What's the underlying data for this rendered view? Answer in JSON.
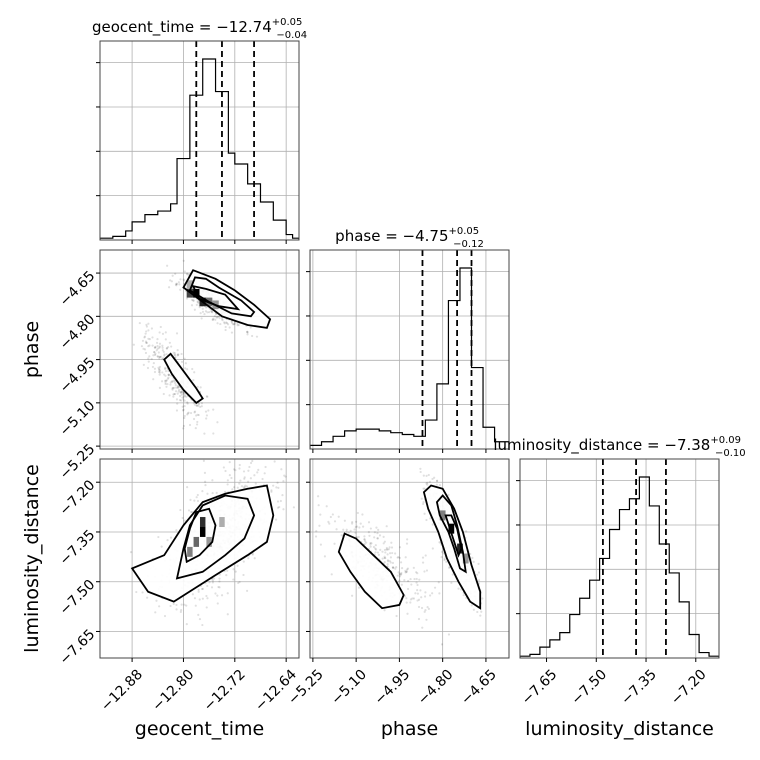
{
  "chart_data": {
    "type": "corner",
    "parameters": [
      "geocent_time",
      "phase",
      "luminosity_distance"
    ],
    "axis_labels": [
      "geocent_time",
      "phase",
      "luminosity_distance"
    ],
    "titles": [
      {
        "param": "geocent_time",
        "prefix": "geocent_time = ",
        "median": "−12.74",
        "plus": "+0.05",
        "minus": "−0.04"
      },
      {
        "param": "phase",
        "prefix": "phase = ",
        "median": "−4.75",
        "plus": "+0.05",
        "minus": "−0.12"
      },
      {
        "param": "luminosity_distance",
        "prefix": "luminosity_distance = ",
        "median": "−7.38",
        "plus": "+0.09",
        "minus": "−0.10"
      }
    ],
    "ranges": {
      "geocent_time": [
        -12.93,
        -12.62
      ],
      "phase": [
        -5.26,
        -4.57
      ],
      "luminosity_distance": [
        -7.73,
        -7.13
      ]
    },
    "ticks": {
      "geocent_time": {
        "values": [
          -12.88,
          -12.8,
          -12.72,
          -12.64
        ],
        "labels": [
          "−12.88",
          "−12.80",
          "−12.72",
          "−12.64"
        ]
      },
      "phase": {
        "values": [
          -5.25,
          -5.1,
          -4.95,
          -4.8,
          -4.65
        ],
        "labels": [
          "−5.25",
          "−5.10",
          "−4.95",
          "−4.80",
          "−4.65"
        ]
      },
      "luminosity_distance": {
        "values": [
          -7.65,
          -7.5,
          -7.35,
          -7.2
        ],
        "labels": [
          "−7.65",
          "−7.50",
          "−7.35",
          "−7.20"
        ]
      }
    },
    "histograms": {
      "geocent_time": {
        "bins": [
          -12.93,
          -12.91,
          -12.89,
          -12.88,
          -12.86,
          -12.84,
          -12.82,
          -12.81,
          -12.79,
          -12.77,
          -12.75,
          -12.73,
          -12.72,
          -12.7,
          -12.68,
          -12.66,
          -12.64,
          -12.63,
          -12.62
        ],
        "counts": [
          0.01,
          0.02,
          0.05,
          0.1,
          0.14,
          0.16,
          0.2,
          0.45,
          0.8,
          1.0,
          0.82,
          0.48,
          0.42,
          0.31,
          0.21,
          0.11,
          0.03,
          0.01
        ],
        "quantiles": [
          -12.78,
          -12.74,
          -12.69
        ]
      },
      "phase": {
        "bins": [
          -5.26,
          -5.22,
          -5.18,
          -5.14,
          -5.1,
          -5.06,
          -5.02,
          -4.98,
          -4.94,
          -4.9,
          -4.86,
          -4.82,
          -4.78,
          -4.74,
          -4.7,
          -4.66,
          -4.62,
          -4.57
        ],
        "counts": [
          0.02,
          0.04,
          0.07,
          0.1,
          0.11,
          0.11,
          0.1,
          0.09,
          0.08,
          0.07,
          0.16,
          0.36,
          0.82,
          1.0,
          0.45,
          0.12,
          0.04
        ],
        "quantiles": [
          -4.87,
          -4.75,
          -4.7
        ]
      },
      "luminosity_distance": {
        "bins": [
          -7.73,
          -7.7,
          -7.67,
          -7.64,
          -7.61,
          -7.58,
          -7.55,
          -7.52,
          -7.49,
          -7.46,
          -7.43,
          -7.4,
          -7.37,
          -7.34,
          -7.31,
          -7.28,
          -7.25,
          -7.22,
          -7.19,
          -7.16,
          -7.13
        ],
        "counts": [
          0.01,
          0.02,
          0.06,
          0.1,
          0.14,
          0.24,
          0.33,
          0.43,
          0.55,
          0.71,
          0.82,
          0.88,
          1.0,
          0.84,
          0.63,
          0.47,
          0.31,
          0.13,
          0.03,
          0.01
        ],
        "quantiles": [
          -7.48,
          -7.38,
          -7.29
        ]
      }
    },
    "samples": {
      "geocent_time_vs_phase": [
        {
          "mean": [
            -12.755,
            -4.75
          ],
          "std": [
            0.025,
            0.045
          ],
          "rho": -0.8,
          "n": 450
        },
        {
          "mean": [
            -12.815,
            -5.0
          ],
          "std": [
            0.022,
            0.075
          ],
          "rho": -0.75,
          "n": 320
        }
      ],
      "geocent_time_vs_luminosity_distance": [
        {
          "mean": [
            -12.75,
            -7.37
          ],
          "std": [
            0.042,
            0.095
          ],
          "rho": 0.55,
          "n": 850
        }
      ],
      "phase_vs_luminosity_distance": [
        {
          "mean": [
            -4.77,
            -7.37
          ],
          "std": [
            0.045,
            0.09
          ],
          "rho": -0.85,
          "n": 450
        },
        {
          "mean": [
            -5.02,
            -7.45
          ],
          "std": [
            0.085,
            0.07
          ],
          "rho": -0.7,
          "n": 380
        }
      ]
    },
    "density_peaks": {
      "geocent_time_vs_phase": [
        {
          "x": -12.78,
          "y": -4.72,
          "w": 0.01,
          "h": 0.03,
          "level": 1.0
        },
        {
          "x": -12.77,
          "y": -4.75,
          "w": 0.01,
          "h": 0.03,
          "level": 0.85
        },
        {
          "x": -12.79,
          "y": -4.72,
          "w": 0.01,
          "h": 0.03,
          "level": 0.7
        },
        {
          "x": -12.76,
          "y": -4.75,
          "w": 0.01,
          "h": 0.03,
          "level": 0.5
        },
        {
          "x": -12.75,
          "y": -4.76,
          "w": 0.01,
          "h": 0.03,
          "level": 0.35
        },
        {
          "x": -12.79,
          "y": -4.69,
          "w": 0.01,
          "h": 0.03,
          "level": 0.25
        }
      ],
      "geocent_time_vs_luminosity_distance": [
        {
          "x": -12.77,
          "y": -7.35,
          "w": 0.0085,
          "h": 0.03,
          "level": 1.0
        },
        {
          "x": -12.77,
          "y": -7.32,
          "w": 0.0085,
          "h": 0.03,
          "level": 0.8
        },
        {
          "x": -12.78,
          "y": -7.38,
          "w": 0.0085,
          "h": 0.03,
          "level": 0.55
        },
        {
          "x": -12.79,
          "y": -7.41,
          "w": 0.0085,
          "h": 0.03,
          "level": 0.45
        },
        {
          "x": -12.76,
          "y": -7.38,
          "w": 0.0085,
          "h": 0.03,
          "level": 0.35
        },
        {
          "x": -12.74,
          "y": -7.32,
          "w": 0.0085,
          "h": 0.03,
          "level": 0.25
        }
      ],
      "phase_vs_luminosity_distance": [
        {
          "x": -4.77,
          "y": -7.34,
          "w": 0.02,
          "h": 0.03,
          "level": 1.0
        },
        {
          "x": -4.74,
          "y": -7.4,
          "w": 0.02,
          "h": 0.03,
          "level": 0.85
        },
        {
          "x": -4.8,
          "y": -7.3,
          "w": 0.02,
          "h": 0.03,
          "level": 0.45
        },
        {
          "x": -4.72,
          "y": -7.43,
          "w": 0.02,
          "h": 0.03,
          "level": 0.35
        }
      ]
    },
    "contours": {
      "geocent_time_vs_phase": [
        [
          [
            -12.785,
            -4.64
          ],
          [
            -12.8,
            -4.7
          ],
          [
            -12.77,
            -4.75
          ],
          [
            -12.74,
            -4.8
          ],
          [
            -12.7,
            -4.83
          ],
          [
            -12.67,
            -4.84
          ],
          [
            -12.665,
            -4.81
          ],
          [
            -12.69,
            -4.76
          ],
          [
            -12.72,
            -4.71
          ],
          [
            -12.75,
            -4.67
          ]
        ],
        [
          [
            -12.782,
            -4.665
          ],
          [
            -12.79,
            -4.71
          ],
          [
            -12.76,
            -4.75
          ],
          [
            -12.725,
            -4.79
          ],
          [
            -12.695,
            -4.8
          ],
          [
            -12.69,
            -4.785
          ],
          [
            -12.71,
            -4.745
          ],
          [
            -12.745,
            -4.7
          ],
          [
            -12.765,
            -4.67
          ]
        ],
        [
          [
            -12.785,
            -4.695
          ],
          [
            -12.775,
            -4.74
          ],
          [
            -12.745,
            -4.765
          ],
          [
            -12.715,
            -4.775
          ],
          [
            -12.735,
            -4.725
          ],
          [
            -12.765,
            -4.705
          ]
        ],
        [
          [
            -12.82,
            -4.93
          ],
          [
            -12.8,
            -4.99
          ],
          [
            -12.78,
            -5.05
          ],
          [
            -12.77,
            -5.085
          ],
          [
            -12.78,
            -5.1
          ],
          [
            -12.8,
            -5.055
          ],
          [
            -12.818,
            -5.0
          ],
          [
            -12.83,
            -4.95
          ]
        ]
      ],
      "geocent_time_vs_luminosity_distance": [
        [
          [
            -12.88,
            -7.46
          ],
          [
            -12.855,
            -7.53
          ],
          [
            -12.815,
            -7.56
          ],
          [
            -12.75,
            -7.48
          ],
          [
            -12.7,
            -7.42
          ],
          [
            -12.67,
            -7.38
          ],
          [
            -12.66,
            -7.3
          ],
          [
            -12.67,
            -7.21
          ],
          [
            -12.7,
            -7.22
          ],
          [
            -12.735,
            -7.235
          ],
          [
            -12.77,
            -7.26
          ],
          [
            -12.8,
            -7.33
          ],
          [
            -12.83,
            -7.42
          ]
        ],
        [
          [
            -12.81,
            -7.49
          ],
          [
            -12.77,
            -7.47
          ],
          [
            -12.735,
            -7.42
          ],
          [
            -12.705,
            -7.37
          ],
          [
            -12.69,
            -7.3
          ],
          [
            -12.7,
            -7.25
          ],
          [
            -12.735,
            -7.24
          ],
          [
            -12.77,
            -7.27
          ],
          [
            -12.79,
            -7.33
          ],
          [
            -12.8,
            -7.4
          ]
        ],
        [
          [
            -12.795,
            -7.44
          ],
          [
            -12.775,
            -7.42
          ],
          [
            -12.755,
            -7.38
          ],
          [
            -12.75,
            -7.33
          ],
          [
            -12.76,
            -7.28
          ],
          [
            -12.78,
            -7.29
          ],
          [
            -12.79,
            -7.34
          ],
          [
            -12.798,
            -7.4
          ]
        ]
      ],
      "phase_vs_luminosity_distance": [
        [
          [
            -4.865,
            -7.23
          ],
          [
            -4.85,
            -7.28
          ],
          [
            -4.815,
            -7.35
          ],
          [
            -4.785,
            -7.43
          ],
          [
            -4.745,
            -7.5
          ],
          [
            -4.705,
            -7.56
          ],
          [
            -4.67,
            -7.58
          ],
          [
            -4.67,
            -7.53
          ],
          [
            -4.7,
            -7.45
          ],
          [
            -4.73,
            -7.35
          ],
          [
            -4.76,
            -7.28
          ],
          [
            -4.8,
            -7.22
          ],
          [
            -4.84,
            -7.21
          ]
        ],
        [
          [
            -4.82,
            -7.26
          ],
          [
            -4.81,
            -7.3
          ],
          [
            -4.78,
            -7.35
          ],
          [
            -4.76,
            -7.4
          ],
          [
            -4.74,
            -7.46
          ],
          [
            -4.72,
            -7.47
          ],
          [
            -4.73,
            -7.41
          ],
          [
            -4.75,
            -7.33
          ],
          [
            -4.77,
            -7.27
          ],
          [
            -4.8,
            -7.24
          ]
        ],
        [
          [
            -4.79,
            -7.3
          ],
          [
            -4.775,
            -7.34
          ],
          [
            -4.76,
            -7.38
          ],
          [
            -4.745,
            -7.42
          ],
          [
            -4.735,
            -7.4
          ],
          [
            -4.75,
            -7.34
          ],
          [
            -4.77,
            -7.3
          ]
        ],
        [
          [
            -5.16,
            -7.41
          ],
          [
            -5.12,
            -7.47
          ],
          [
            -5.07,
            -7.53
          ],
          [
            -5.01,
            -7.58
          ],
          [
            -4.95,
            -7.57
          ],
          [
            -4.935,
            -7.54
          ],
          [
            -4.98,
            -7.47
          ],
          [
            -5.04,
            -7.42
          ],
          [
            -5.1,
            -7.37
          ],
          [
            -5.14,
            -7.355
          ]
        ]
      ]
    },
    "grid": true,
    "legend": "none"
  }
}
